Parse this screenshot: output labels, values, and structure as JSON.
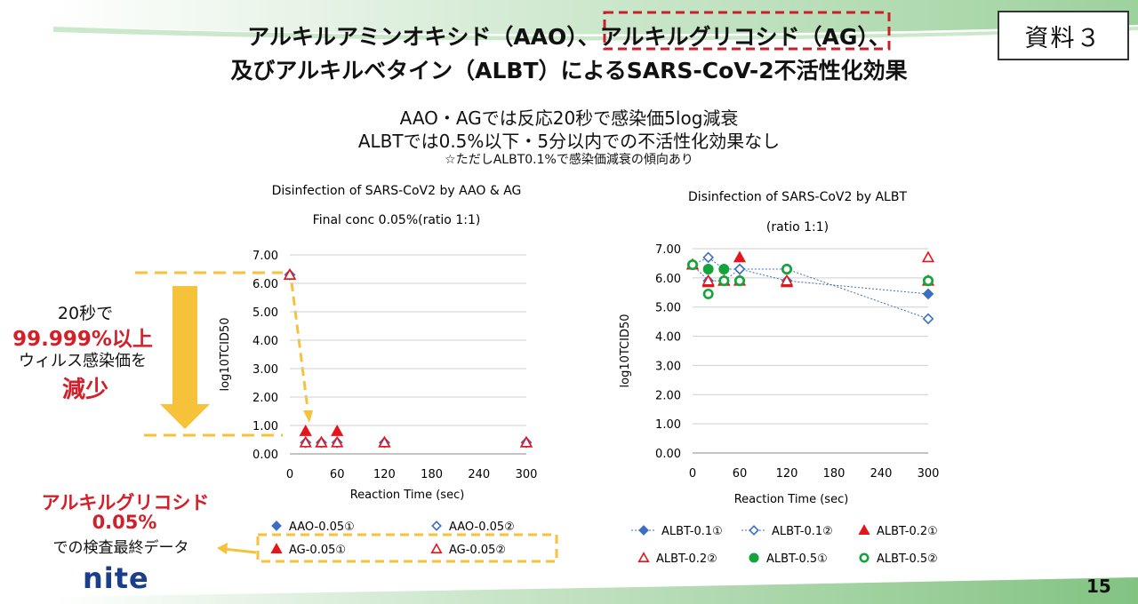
{
  "slide": {
    "doc_label": "資料３",
    "title_line1_a": "アルキルアミンオキシド（AAO）、",
    "title_line1_b": "アルキルグリコシド（AG）",
    "title_line1_c": "、",
    "title_line2": "及びアルキルベタイン（ALBT）によるSARS-CoV-2不活性化効果",
    "summary_line1": "AAO・AGでは反応20秒で感染価5log減衰",
    "summary_line2": "ALBTでは0.5%以下・5分以内での不活性化効果なし",
    "summary_note": "☆ただしALBT0.1%で感染価減衰の傾向あり",
    "page_number": "15",
    "logo_text": "nite"
  },
  "callouts": {
    "reduction_line1": "20秒で",
    "reduction_line2": "99.999%以上",
    "reduction_line3": "ウィルス感染価を",
    "reduction_line4": "減少",
    "ag_line1": "アルキルグリコシド",
    "ag_line2": "0.05%",
    "ag_line3": "での検査最終データ"
  },
  "colors": {
    "blue": "#3b6fc4",
    "red": "#e8141c",
    "green": "#13a53b",
    "accent_red": "#d2202a",
    "callout_yellow": "#f6c23a",
    "header_green": "#7cc27c",
    "footer_green": "#6cb86c"
  },
  "chart_data": [
    {
      "type": "scatter",
      "title": "Disinfection of SARS-CoV2 by AAO & AG",
      "subtitle": "Final conc 0.05%(ratio 1:1)",
      "xlabel": "Reaction Time (sec)",
      "ylabel": "log10TCID50",
      "xlim": [
        0,
        300
      ],
      "ylim": [
        0,
        7
      ],
      "x_ticks": [
        "0",
        "60",
        "120",
        "180",
        "240",
        "300"
      ],
      "y_ticks": [
        "0.00",
        "1.00",
        "2.00",
        "3.00",
        "4.00",
        "5.00",
        "6.00",
        "7.00"
      ],
      "grid": true,
      "legend_position": "bottom",
      "series": [
        {
          "name": "AAO-0.05①",
          "marker": "diamond-filled",
          "color": "#3b6fc4",
          "line": false,
          "points": [
            [
              0,
              6.3
            ],
            [
              20,
              0.4
            ],
            [
              40,
              0.4
            ],
            [
              60,
              0.4
            ],
            [
              120,
              0.4
            ],
            [
              300,
              0.4
            ]
          ]
        },
        {
          "name": "AAO-0.05②",
          "marker": "diamond-open",
          "color": "#3b6fc4",
          "line": false,
          "points": [
            [
              0,
              6.3
            ],
            [
              20,
              0.4
            ],
            [
              40,
              0.4
            ],
            [
              60,
              0.4
            ],
            [
              120,
              0.4
            ],
            [
              300,
              0.4
            ]
          ]
        },
        {
          "name": "AG-0.05①",
          "marker": "triangle-filled",
          "color": "#e8141c",
          "line": false,
          "points": [
            [
              0,
              6.3
            ],
            [
              20,
              0.8
            ],
            [
              40,
              0.4
            ],
            [
              60,
              0.8
            ],
            [
              120,
              0.4
            ],
            [
              300,
              0.4
            ]
          ]
        },
        {
          "name": "AG-0.05②",
          "marker": "triangle-open",
          "color": "#e8141c",
          "line": false,
          "points": [
            [
              0,
              6.3
            ],
            [
              20,
              0.4
            ],
            [
              40,
              0.4
            ],
            [
              60,
              0.4
            ],
            [
              120,
              0.4
            ],
            [
              300,
              0.4
            ]
          ]
        }
      ]
    },
    {
      "type": "scatter",
      "title": "Disinfection of SARS-CoV2 by ALBT",
      "subtitle": "(ratio 1:1)",
      "xlabel": "Reaction Time (sec)",
      "ylabel": "log10TCID50",
      "xlim": [
        0,
        300
      ],
      "ylim": [
        0,
        7
      ],
      "x_ticks": [
        "0",
        "60",
        "120",
        "180",
        "240",
        "300"
      ],
      "y_ticks": [
        "0.00",
        "1.00",
        "2.00",
        "3.00",
        "4.00",
        "5.00",
        "6.00",
        "7.00"
      ],
      "grid": true,
      "legend_position": "bottom",
      "series": [
        {
          "name": "ALBT-0.1①",
          "marker": "diamond-filled",
          "color": "#3b6fc4",
          "line": true,
          "points": [
            [
              0,
              6.45
            ],
            [
              20,
              5.9
            ],
            [
              40,
              5.9
            ],
            [
              60,
              6.3
            ],
            [
              120,
              5.9
            ],
            [
              300,
              5.45
            ]
          ]
        },
        {
          "name": "ALBT-0.1②",
          "marker": "diamond-open",
          "color": "#3b6fc4",
          "line": true,
          "points": [
            [
              0,
              6.45
            ],
            [
              20,
              6.7
            ],
            [
              40,
              6.3
            ],
            [
              60,
              6.3
            ],
            [
              120,
              6.3
            ],
            [
              300,
              4.6
            ]
          ]
        },
        {
          "name": "ALBT-0.2①",
          "marker": "triangle-filled",
          "color": "#e8141c",
          "line": false,
          "points": [
            [
              0,
              6.45
            ],
            [
              20,
              5.85
            ],
            [
              40,
              5.9
            ],
            [
              60,
              6.7
            ],
            [
              120,
              5.85
            ],
            [
              300,
              5.9
            ]
          ]
        },
        {
          "name": "ALBT-0.2②",
          "marker": "triangle-open",
          "color": "#e8141c",
          "line": false,
          "points": [
            [
              0,
              6.45
            ],
            [
              20,
              5.9
            ],
            [
              40,
              5.9
            ],
            [
              60,
              5.9
            ],
            [
              120,
              5.9
            ],
            [
              300,
              6.7
            ]
          ]
        },
        {
          "name": "ALBT-0.5①",
          "marker": "circle-filled",
          "color": "#13a53b",
          "line": false,
          "points": [
            [
              0,
              6.45
            ],
            [
              20,
              6.3
            ],
            [
              40,
              6.3
            ],
            [
              60,
              5.9
            ],
            [
              120,
              6.3
            ],
            [
              300,
              5.9
            ]
          ]
        },
        {
          "name": "ALBT-0.5②",
          "marker": "circle-open",
          "color": "#13a53b",
          "line": false,
          "points": [
            [
              0,
              6.45
            ],
            [
              20,
              5.45
            ],
            [
              40,
              5.9
            ],
            [
              60,
              5.9
            ],
            [
              120,
              6.3
            ],
            [
              300,
              5.9
            ]
          ]
        }
      ]
    }
  ]
}
